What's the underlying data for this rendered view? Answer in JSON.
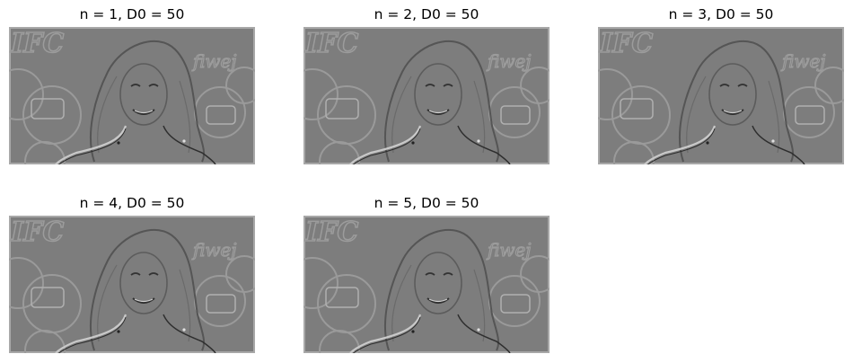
{
  "figure": {
    "panels": [
      {
        "title": "n = 1, D0 = 50"
      },
      {
        "title": "n = 2, D0 = 50"
      },
      {
        "title": "n = 3, D0 = 50"
      },
      {
        "title": "n = 4, D0 = 50"
      },
      {
        "title": "n = 5, D0 = 50"
      }
    ]
  },
  "colors": {
    "image_gray": "#7d7d7d",
    "edge_dark": "#2e2e2e",
    "edge_light": "#c9c9c9"
  },
  "image_content": {
    "background_text_left": "IFC",
    "background_text_right": "fiwej"
  }
}
